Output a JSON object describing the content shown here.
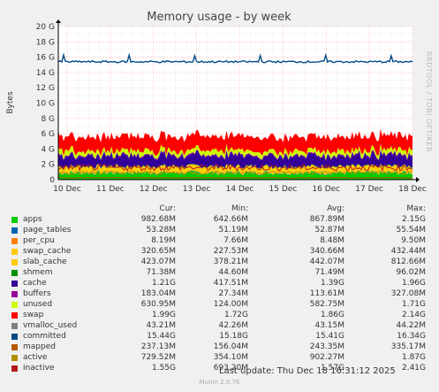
{
  "chart_data": {
    "type": "area",
    "title": "Memory usage - by week",
    "ylabel": "Bytes",
    "side_text": "RRDTOOL / TOBI OETIKER",
    "x_ticks": [
      "10 Dec",
      "11 Dec",
      "12 Dec",
      "13 Dec",
      "14 Dec",
      "15 Dec",
      "16 Dec",
      "17 Dec",
      "18 Dec"
    ],
    "y_ticks": [
      "0",
      "2 G",
      "4 G",
      "6 G",
      "8 G",
      "10 G",
      "12 G",
      "14 G",
      "16 G",
      "18 G",
      "20 G"
    ],
    "ylim": [
      0,
      20
    ],
    "y_unit": "G",
    "grid": true,
    "legend_position": "bottom",
    "column_headers": [
      "Cur:",
      "Min:",
      "Avg:",
      "Max:"
    ],
    "series": [
      {
        "name": "apps",
        "color": "#00cc00",
        "cur": "982.68M",
        "min": "642.66M",
        "avg": "867.89M",
        "max": "2.15G",
        "level": 0.87
      },
      {
        "name": "page_tables",
        "color": "#0066b3",
        "cur": "53.28M",
        "min": "51.19M",
        "avg": "52.87M",
        "max": "55.54M",
        "level": 0.05
      },
      {
        "name": "per_cpu",
        "color": "#ff8000",
        "cur": "8.19M",
        "min": "7.66M",
        "avg": "8.48M",
        "max": "9.50M",
        "level": 0.01
      },
      {
        "name": "swap_cache",
        "color": "#ffcc00",
        "cur": "320.65M",
        "min": "227.53M",
        "avg": "340.66M",
        "max": "432.44M",
        "level": 0.34
      },
      {
        "name": "slab_cache",
        "color": "#ffcc00",
        "cur": "423.07M",
        "min": "378.21M",
        "avg": "442.07M",
        "max": "812.66M",
        "level": 0.44
      },
      {
        "name": "shmem",
        "color": "#008f00",
        "cur": "71.38M",
        "min": "44.60M",
        "avg": "71.49M",
        "max": "96.02M",
        "level": 0.07
      },
      {
        "name": "cache",
        "color": "#330099",
        "cur": "1.21G",
        "min": "417.51M",
        "avg": "1.39G",
        "max": "1.96G",
        "level": 1.39
      },
      {
        "name": "buffers",
        "color": "#990099",
        "cur": "183.04M",
        "min": "27.34M",
        "avg": "113.61M",
        "max": "327.08M",
        "level": 0.11
      },
      {
        "name": "unused",
        "color": "#ccff00",
        "cur": "630.95M",
        "min": "124.00M",
        "avg": "582.75M",
        "max": "1.71G",
        "level": 0.58
      },
      {
        "name": "swap",
        "color": "#ff0000",
        "cur": "1.99G",
        "min": "1.72G",
        "avg": "1.86G",
        "max": "2.14G",
        "level": 1.86
      },
      {
        "name": "vmalloc_used",
        "color": "#808080",
        "cur": "43.21M",
        "min": "42.26M",
        "avg": "43.15M",
        "max": "44.22M",
        "line": false
      },
      {
        "name": "committed",
        "color": "#004b85",
        "cur": "15.44G",
        "min": "15.18G",
        "avg": "15.41G",
        "max": "16.34G",
        "line": true,
        "line_level": 15.4
      },
      {
        "name": "mapped",
        "color": "#b35900",
        "cur": "237.13M",
        "min": "156.04M",
        "avg": "243.35M",
        "max": "335.17M",
        "line": true,
        "line_level": 0.24
      },
      {
        "name": "active",
        "color": "#b38f00",
        "cur": "729.52M",
        "min": "354.10M",
        "avg": "902.27M",
        "max": "1.87G",
        "line": true,
        "line_level": 0.9
      },
      {
        "name": "inactive",
        "color": "#b31b1b",
        "cur": "1.55G",
        "min": "693.20M",
        "avg": "1.57G",
        "max": "2.41G",
        "line": true,
        "line_level": 1.57
      }
    ],
    "last_update": "Last update: Thu Dec 18 16:31:12 2025",
    "footer": "Munin 2.0.76"
  }
}
